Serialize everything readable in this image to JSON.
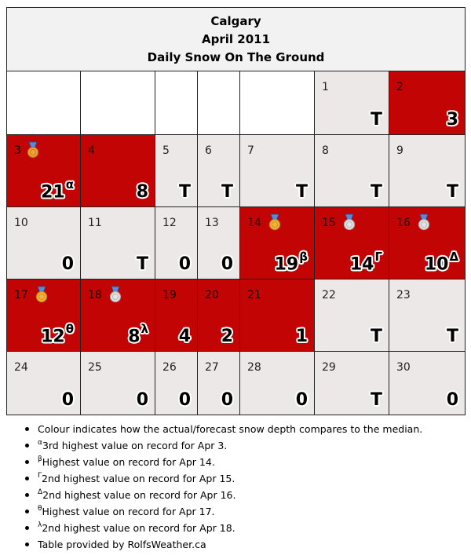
{
  "title": {
    "city": "Calgary",
    "month": "April 2011",
    "subject": "Daily Snow On The Ground"
  },
  "colors": {
    "above": "#c20404",
    "below": "#ede8e8",
    "blank": "#ffffff",
    "header": "#f2f2f2"
  },
  "weeks": [
    [
      null,
      null,
      null,
      null,
      null,
      {
        "day": "1",
        "value": "T",
        "cls": "low"
      },
      {
        "day": "2",
        "value": "3",
        "cls": "high"
      }
    ],
    [
      {
        "day": "3",
        "value": "21",
        "sup": "α",
        "cls": "high",
        "medal": "bronze-medal-icon"
      },
      {
        "day": "4",
        "value": "8",
        "cls": "high"
      },
      {
        "day": "5",
        "value": "T",
        "cls": "low"
      },
      {
        "day": "6",
        "value": "T",
        "cls": "low"
      },
      {
        "day": "7",
        "value": "T",
        "cls": "low"
      },
      {
        "day": "8",
        "value": "T",
        "cls": "low"
      },
      {
        "day": "9",
        "value": "T",
        "cls": "low"
      }
    ],
    [
      {
        "day": "10",
        "value": "0",
        "cls": "low"
      },
      {
        "day": "11",
        "value": "T",
        "cls": "low"
      },
      {
        "day": "12",
        "value": "0",
        "cls": "low"
      },
      {
        "day": "13",
        "value": "0",
        "cls": "low"
      },
      {
        "day": "14",
        "value": "19",
        "sup": "β",
        "cls": "high",
        "medal": "gold-medal-icon"
      },
      {
        "day": "15",
        "value": "14",
        "sup": "Γ",
        "cls": "high",
        "medal": "silver-medal-icon"
      },
      {
        "day": "16",
        "value": "10",
        "sup": "Δ",
        "cls": "high",
        "medal": "silver-medal-icon"
      }
    ],
    [
      {
        "day": "17",
        "value": "12",
        "sup": "θ",
        "cls": "high",
        "medal": "gold-medal-icon"
      },
      {
        "day": "18",
        "value": "8",
        "sup": "λ",
        "cls": "high",
        "medal": "silver-medal-icon"
      },
      {
        "day": "19",
        "value": "4",
        "cls": "high"
      },
      {
        "day": "20",
        "value": "2",
        "cls": "high"
      },
      {
        "day": "21",
        "value": "1",
        "cls": "high"
      },
      {
        "day": "22",
        "value": "T",
        "cls": "low"
      },
      {
        "day": "23",
        "value": "T",
        "cls": "low"
      }
    ],
    [
      {
        "day": "24",
        "value": "0",
        "cls": "low"
      },
      {
        "day": "25",
        "value": "0",
        "cls": "low"
      },
      {
        "day": "26",
        "value": "0",
        "cls": "low"
      },
      {
        "day": "27",
        "value": "0",
        "cls": "low"
      },
      {
        "day": "28",
        "value": "0",
        "cls": "low"
      },
      {
        "day": "29",
        "value": "T",
        "cls": "low"
      },
      {
        "day": "30",
        "value": "0",
        "cls": "low"
      }
    ]
  ],
  "notes": [
    {
      "sup": "",
      "text": "Colour indicates how the actual/forecast snow depth compares to the median."
    },
    {
      "sup": "α",
      "text": "3rd highest value on record for Apr 3."
    },
    {
      "sup": "β",
      "text": "Highest value on record for Apr 14."
    },
    {
      "sup": "Γ",
      "text": "2nd highest value on record for Apr 15."
    },
    {
      "sup": "Δ",
      "text": "2nd highest value on record for Apr 16."
    },
    {
      "sup": "θ",
      "text": "Highest value on record for Apr 17."
    },
    {
      "sup": "λ",
      "text": "2nd highest value on record for Apr 18."
    },
    {
      "sup": "",
      "text": "Table provided by RolfsWeather.ca"
    }
  ]
}
